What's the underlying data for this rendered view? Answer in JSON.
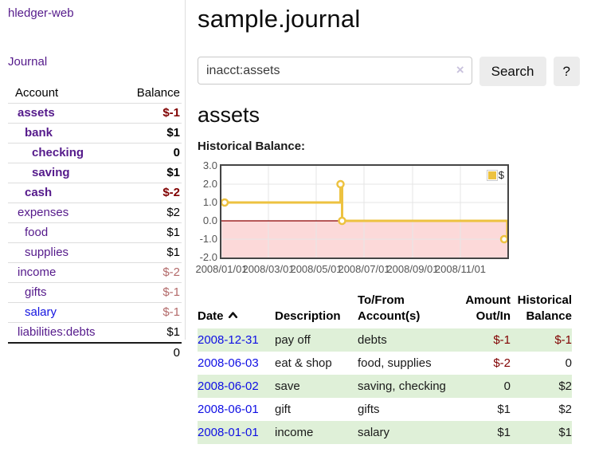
{
  "app": {
    "brand": "hledger-web"
  },
  "sidebar": {
    "nav_journal": "Journal",
    "accounts": {
      "header": {
        "account": "Account",
        "balance": "Balance"
      },
      "rows": [
        {
          "name": "assets",
          "balance": "$-1"
        },
        {
          "name": "bank",
          "balance": "$1"
        },
        {
          "name": "checking",
          "balance": "0"
        },
        {
          "name": "saving",
          "balance": "$1"
        },
        {
          "name": "cash",
          "balance": "$-2"
        },
        {
          "name": "expenses",
          "balance": "$2"
        },
        {
          "name": "food",
          "balance": "$1"
        },
        {
          "name": "supplies",
          "balance": "$1"
        },
        {
          "name": "income",
          "balance": "$-2"
        },
        {
          "name": "gifts",
          "balance": "$-1"
        },
        {
          "name": "salary",
          "balance": "$-1"
        },
        {
          "name": "liabilities:debts",
          "balance": "$1"
        }
      ],
      "total": "0"
    }
  },
  "main": {
    "title": "sample.journal",
    "search": {
      "value": "inacct:assets",
      "clear_icon": "×",
      "button_label": "Search",
      "help_label": "?"
    },
    "account_heading": "assets",
    "chart_label": "Historical Balance:"
  },
  "chart_data": {
    "type": "line",
    "step": true,
    "title": "Historical Balance:",
    "series": [
      {
        "name": "$",
        "color": "#edc240",
        "points": [
          [
            "2008-01-01",
            1
          ],
          [
            "2008-06-01",
            2
          ],
          [
            "2008-06-03",
            0
          ],
          [
            "2008-12-31",
            -1
          ]
        ]
      }
    ],
    "ylim": [
      -2,
      3
    ],
    "yticks": [
      "3.0",
      "2.0",
      "1.0",
      "0.0",
      "-1.0",
      "-2.0"
    ],
    "xticks": [
      "2008/01/01",
      "2008/03/01",
      "2008/05/01",
      "2008/07/01",
      "2008/09/01",
      "2008/11/01"
    ],
    "legend": {
      "label": "$",
      "position": "top-right"
    },
    "grid": true,
    "negative_region_color": "#fcd9d9",
    "zero_line_color": "#8b0000",
    "plot_border_color": "#454545"
  },
  "register": {
    "headers": [
      "Date",
      "Description",
      "To/From Account(s)",
      "Amount Out/In",
      "Historical Balance"
    ],
    "rows": [
      {
        "date": "2008-12-31",
        "description": "pay off",
        "accounts": "debts",
        "amount": "$-1",
        "balance": "$-1"
      },
      {
        "date": "2008-06-03",
        "description": "eat & shop",
        "accounts": "food, supplies",
        "amount": "$-2",
        "balance": "0"
      },
      {
        "date": "2008-06-02",
        "description": "save",
        "accounts": "saving, checking",
        "amount": "0",
        "balance": "$2"
      },
      {
        "date": "2008-06-01",
        "description": "gift",
        "accounts": "gifts",
        "amount": "$1",
        "balance": "$2"
      },
      {
        "date": "2008-01-01",
        "description": "income",
        "accounts": "salary",
        "amount": "$1",
        "balance": "$1"
      }
    ]
  },
  "colors": {
    "link_purple": "#551a8b",
    "link_blue": "#0f0fe4",
    "negative_strong": "#800000",
    "negative_soft": "#b36a6a",
    "row_green": "#dff0d8",
    "series_yellow": "#edc240",
    "negative_region_pink": "#fcd9d9",
    "zero_line_red": "#8b0000"
  }
}
